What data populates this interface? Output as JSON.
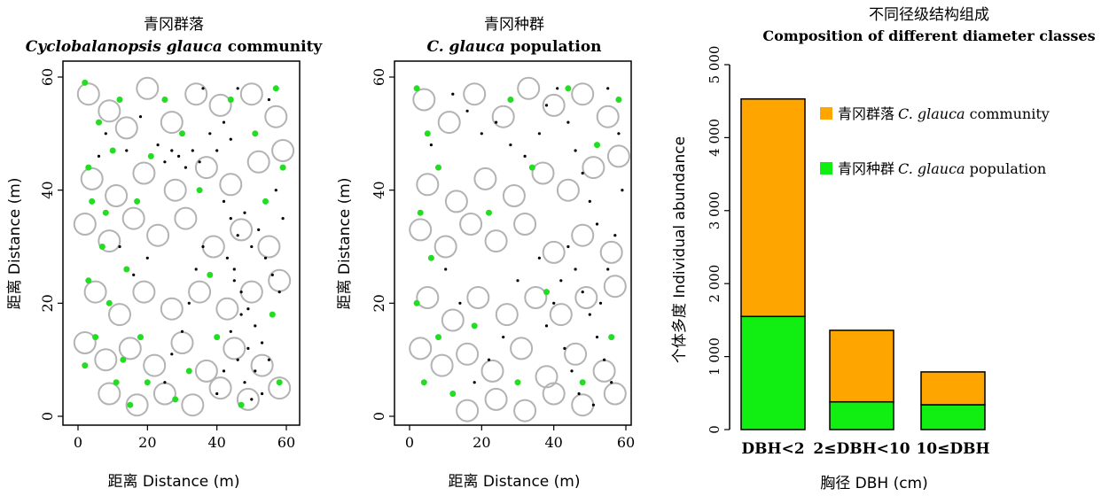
{
  "chart_data": [
    {
      "type": "scatter",
      "title_cn": "青冈群落",
      "title_italic": "Cyclobalanopsis glauca",
      "title_rest": " community",
      "xlabel": "距离 Distance (m)",
      "ylabel": "距离 Distance (m)",
      "xlim": [
        0,
        60
      ],
      "ylim": [
        0,
        60
      ],
      "xticks": [
        "0",
        "20",
        "40",
        "60"
      ],
      "yticks": [
        "0",
        "20",
        "40",
        "60"
      ],
      "series": [
        {
          "color": "#b3b3b3",
          "shape": "open-circle",
          "marker_size": "large",
          "points": [
            [
              3,
              57
            ],
            [
              9,
              54
            ],
            [
              14,
              51
            ],
            [
              20,
              58
            ],
            [
              27,
              52
            ],
            [
              34,
              57
            ],
            [
              41,
              55
            ],
            [
              50,
              57
            ],
            [
              57,
              53
            ],
            [
              59,
              47
            ],
            [
              52,
              45
            ],
            [
              44,
              41
            ],
            [
              37,
              44
            ],
            [
              28,
              40
            ],
            [
              19,
              43
            ],
            [
              11,
              39
            ],
            [
              4,
              42
            ],
            [
              2,
              34
            ],
            [
              9,
              31
            ],
            [
              16,
              35
            ],
            [
              23,
              32
            ],
            [
              31,
              35
            ],
            [
              39,
              30
            ],
            [
              47,
              33
            ],
            [
              55,
              30
            ],
            [
              58,
              24
            ],
            [
              50,
              22
            ],
            [
              43,
              19
            ],
            [
              35,
              22
            ],
            [
              27,
              19
            ],
            [
              19,
              22
            ],
            [
              12,
              18
            ],
            [
              5,
              22
            ],
            [
              2,
              13
            ],
            [
              8,
              10
            ],
            [
              15,
              12
            ],
            [
              22,
              9
            ],
            [
              30,
              13
            ],
            [
              37,
              8
            ],
            [
              45,
              12
            ],
            [
              53,
              9
            ],
            [
              58,
              5
            ],
            [
              49,
              3
            ],
            [
              41,
              5
            ],
            [
              33,
              2
            ],
            [
              25,
              4
            ],
            [
              17,
              2
            ],
            [
              9,
              4
            ]
          ]
        },
        {
          "color": "#000000",
          "shape": "dot",
          "marker_size": "small",
          "points": [
            [
              23,
              48
            ],
            [
              25,
              45
            ],
            [
              27,
              47
            ],
            [
              29,
              46
            ],
            [
              31,
              44
            ],
            [
              33,
              47
            ],
            [
              35,
              45
            ],
            [
              38,
              50
            ],
            [
              40,
              47
            ],
            [
              42,
              52
            ],
            [
              44,
              49
            ],
            [
              42,
              38
            ],
            [
              44,
              35
            ],
            [
              46,
              32
            ],
            [
              48,
              36
            ],
            [
              50,
              30
            ],
            [
              52,
              33
            ],
            [
              54,
              28
            ],
            [
              56,
              25
            ],
            [
              58,
              22
            ],
            [
              45,
              26
            ],
            [
              47,
              22
            ],
            [
              49,
              19
            ],
            [
              51,
              16
            ],
            [
              53,
              13
            ],
            [
              55,
              10
            ],
            [
              44,
              15
            ],
            [
              46,
              10
            ],
            [
              48,
              6
            ],
            [
              50,
              3
            ],
            [
              42,
              8
            ],
            [
              40,
              4
            ],
            [
              36,
              30
            ],
            [
              34,
              26
            ],
            [
              32,
              20
            ],
            [
              30,
              15
            ],
            [
              27,
              11
            ],
            [
              25,
              6
            ],
            [
              20,
              28
            ],
            [
              16,
              25
            ],
            [
              12,
              30
            ],
            [
              8,
              50
            ],
            [
              6,
              46
            ],
            [
              14,
              47
            ],
            [
              18,
              53
            ],
            [
              36,
              58
            ],
            [
              46,
              58
            ],
            [
              55,
              56
            ],
            [
              57,
              40
            ],
            [
              59,
              35
            ],
            [
              43,
              28
            ],
            [
              45,
              24
            ],
            [
              47,
              18
            ],
            [
              49,
              12
            ],
            [
              51,
              8
            ],
            [
              53,
              4
            ]
          ]
        },
        {
          "color": "#22dd22",
          "shape": "filled-circle",
          "marker_size": "medium",
          "points": [
            [
              2,
              59
            ],
            [
              6,
              52
            ],
            [
              10,
              47
            ],
            [
              4,
              38
            ],
            [
              7,
              30
            ],
            [
              3,
              24
            ],
            [
              9,
              20
            ],
            [
              5,
              14
            ],
            [
              2,
              9
            ],
            [
              11,
              6
            ],
            [
              15,
              2
            ],
            [
              18,
              14
            ],
            [
              14,
              26
            ],
            [
              17,
              38
            ],
            [
              21,
              46
            ],
            [
              25,
              56
            ],
            [
              30,
              50
            ],
            [
              35,
              40
            ],
            [
              38,
              25
            ],
            [
              32,
              8
            ],
            [
              28,
              3
            ],
            [
              44,
              56
            ],
            [
              51,
              50
            ],
            [
              57,
              58
            ],
            [
              59,
              44
            ],
            [
              54,
              38
            ],
            [
              56,
              18
            ],
            [
              58,
              6
            ],
            [
              47,
              2
            ],
            [
              40,
              14
            ],
            [
              12,
              56
            ],
            [
              3,
              44
            ],
            [
              8,
              36
            ],
            [
              13,
              10
            ],
            [
              20,
              6
            ]
          ]
        }
      ]
    },
    {
      "type": "scatter",
      "title_cn": "青冈种群",
      "title_italic": "C. glauca",
      "title_rest": " population",
      "xlabel": "距离 Distance (m)",
      "ylabel": "距离 Distance (m)",
      "xlim": [
        0,
        60
      ],
      "ylim": [
        0,
        60
      ],
      "xticks": [
        "0",
        "20",
        "40",
        "60"
      ],
      "yticks": [
        "0",
        "20",
        "40",
        "60"
      ],
      "series": [
        {
          "color": "#b3b3b3",
          "shape": "open-circle",
          "marker_size": "large",
          "points": [
            [
              4,
              56
            ],
            [
              11,
              52
            ],
            [
              18,
              57
            ],
            [
              26,
              53
            ],
            [
              33,
              58
            ],
            [
              40,
              55
            ],
            [
              48,
              57
            ],
            [
              55,
              53
            ],
            [
              58,
              46
            ],
            [
              51,
              44
            ],
            [
              44,
              40
            ],
            [
              37,
              43
            ],
            [
              29,
              39
            ],
            [
              21,
              42
            ],
            [
              13,
              38
            ],
            [
              5,
              41
            ],
            [
              3,
              33
            ],
            [
              10,
              30
            ],
            [
              17,
              34
            ],
            [
              24,
              31
            ],
            [
              32,
              34
            ],
            [
              40,
              29
            ],
            [
              48,
              32
            ],
            [
              56,
              29
            ],
            [
              57,
              23
            ],
            [
              49,
              21
            ],
            [
              42,
              18
            ],
            [
              35,
              21
            ],
            [
              27,
              18
            ],
            [
              19,
              21
            ],
            [
              12,
              17
            ],
            [
              5,
              21
            ],
            [
              3,
              12
            ],
            [
              9,
              9
            ],
            [
              16,
              11
            ],
            [
              23,
              8
            ],
            [
              31,
              12
            ],
            [
              38,
              7
            ],
            [
              46,
              11
            ],
            [
              54,
              8
            ],
            [
              57,
              4
            ],
            [
              48,
              2
            ],
            [
              40,
              4
            ],
            [
              32,
              1
            ],
            [
              24,
              3
            ],
            [
              16,
              1
            ]
          ]
        },
        {
          "color": "#000000",
          "shape": "dot",
          "marker_size": "small",
          "points": [
            [
              12,
              57
            ],
            [
              16,
              54
            ],
            [
              20,
              50
            ],
            [
              24,
              52
            ],
            [
              28,
              48
            ],
            [
              32,
              46
            ],
            [
              36,
              50
            ],
            [
              38,
              55
            ],
            [
              41,
              58
            ],
            [
              44,
              52
            ],
            [
              46,
              47
            ],
            [
              48,
              43
            ],
            [
              50,
              38
            ],
            [
              52,
              34
            ],
            [
              44,
              30
            ],
            [
              46,
              26
            ],
            [
              48,
              22
            ],
            [
              50,
              18
            ],
            [
              52,
              14
            ],
            [
              54,
              10
            ],
            [
              56,
              6
            ],
            [
              42,
              24
            ],
            [
              40,
              20
            ],
            [
              38,
              16
            ],
            [
              43,
              12
            ],
            [
              45,
              8
            ],
            [
              47,
              4
            ],
            [
              36,
              28
            ],
            [
              30,
              24
            ],
            [
              26,
              14
            ],
            [
              22,
              10
            ],
            [
              18,
              6
            ],
            [
              14,
              20
            ],
            [
              10,
              26
            ],
            [
              6,
              48
            ],
            [
              55,
              58
            ],
            [
              58,
              50
            ],
            [
              59,
              40
            ],
            [
              57,
              32
            ],
            [
              55,
              26
            ],
            [
              53,
              20
            ],
            [
              51,
              2
            ]
          ]
        },
        {
          "color": "#22dd22",
          "shape": "filled-circle",
          "marker_size": "medium",
          "points": [
            [
              2,
              58
            ],
            [
              5,
              50
            ],
            [
              8,
              44
            ],
            [
              3,
              36
            ],
            [
              6,
              28
            ],
            [
              2,
              20
            ],
            [
              8,
              14
            ],
            [
              4,
              6
            ],
            [
              12,
              4
            ],
            [
              18,
              16
            ],
            [
              22,
              36
            ],
            [
              28,
              56
            ],
            [
              34,
              44
            ],
            [
              38,
              22
            ],
            [
              30,
              6
            ],
            [
              44,
              58
            ],
            [
              52,
              48
            ],
            [
              58,
              56
            ],
            [
              56,
              14
            ],
            [
              48,
              6
            ]
          ]
        }
      ]
    },
    {
      "type": "bar",
      "stacked": true,
      "title_cn": "不同径级结构组成",
      "title_en": "Composition of different diameter classes",
      "xlabel": "胸径  DBH (cm)",
      "ylabel": "个体多度 Individual abundance",
      "ylim": [
        0,
        5000
      ],
      "yticks": [
        "0",
        "1 000",
        "2 000",
        "3 000",
        "4 000",
        "5 000"
      ],
      "categories": [
        "DBH<2",
        "2≤DBH<10",
        "10≤DBH"
      ],
      "series": [
        {
          "name_cn": "青冈种群",
          "name_italic": "C. glauca",
          "name_rest": " population",
          "color": "#11ee11",
          "values": [
            1550,
            380,
            340
          ]
        },
        {
          "name_cn": "青冈群落",
          "name_italic": "C. glauca",
          "name_rest": " community",
          "color": "#ffa500",
          "values": [
            2980,
            980,
            450
          ]
        }
      ],
      "legend_placement": "top-right"
    }
  ]
}
